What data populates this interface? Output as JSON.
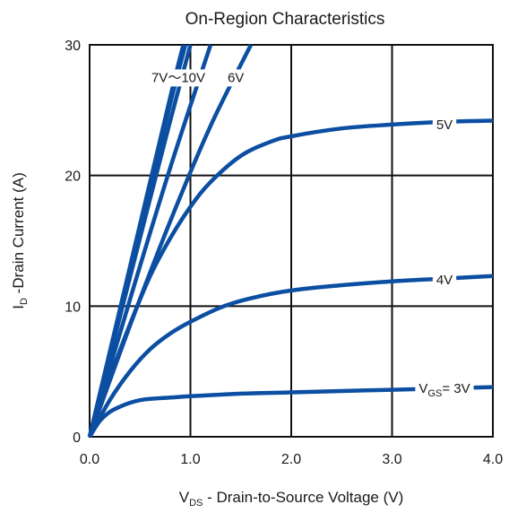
{
  "chart_data": {
    "type": "line",
    "title": "On-Region Characteristics",
    "xlabel": {
      "main": "V",
      "sub": "DS",
      "rest": " - Drain-to-Source Voltage (V)"
    },
    "ylabel": {
      "main": "I",
      "sub": "D",
      "rest": " -Drain Current (A)"
    },
    "xlim": [
      0,
      4
    ],
    "ylim": [
      0,
      30
    ],
    "x_ticks": [
      {
        "value": 0,
        "label": "0.0"
      },
      {
        "value": 1,
        "label": "1.0"
      },
      {
        "value": 2,
        "label": "2.0"
      },
      {
        "value": 3,
        "label": "3.0"
      },
      {
        "value": 4,
        "label": "4.0"
      }
    ],
    "y_ticks": [
      {
        "value": 0,
        "label": "0"
      },
      {
        "value": 10,
        "label": "10"
      },
      {
        "value": 20,
        "label": "20"
      },
      {
        "value": 30,
        "label": "30"
      }
    ],
    "grid": true,
    "line_color": "#0b4ea2",
    "series": [
      {
        "name": "VGS= 3V",
        "x": [
          0,
          0.1,
          0.2,
          0.3,
          0.4,
          0.5,
          0.6,
          0.8,
          1.0,
          1.5,
          2.0,
          2.5,
          3.0,
          3.5,
          4.0
        ],
        "y": [
          0,
          1.2,
          1.9,
          2.3,
          2.6,
          2.8,
          2.9,
          3.0,
          3.1,
          3.3,
          3.4,
          3.5,
          3.6,
          3.7,
          3.8
        ]
      },
      {
        "name": "4V",
        "x": [
          0,
          0.2,
          0.4,
          0.6,
          0.8,
          1.0,
          1.3,
          1.6,
          2.0,
          2.5,
          3.0,
          3.5,
          4.0
        ],
        "y": [
          0,
          2.8,
          5.0,
          6.7,
          7.9,
          8.8,
          9.9,
          10.6,
          11.2,
          11.6,
          11.9,
          12.1,
          12.3
        ]
      },
      {
        "name": "5V",
        "x": [
          0,
          0.2,
          0.4,
          0.6,
          0.8,
          1.0,
          1.2,
          1.5,
          1.8,
          2.0,
          2.5,
          3.0,
          3.5,
          4.0
        ],
        "y": [
          0,
          4.5,
          8.6,
          12.3,
          15.2,
          17.6,
          19.5,
          21.5,
          22.6,
          23.0,
          23.6,
          23.9,
          24.1,
          24.2
        ]
      },
      {
        "name": "6V",
        "x": [
          0,
          0.4,
          0.8,
          1.2,
          1.6
        ],
        "y": [
          0,
          8.5,
          16.5,
          23.8,
          30
        ]
      },
      {
        "name": "7V",
        "x": [
          0,
          0.4,
          0.8,
          1.2
        ],
        "y": [
          0,
          10.5,
          20.6,
          30
        ]
      },
      {
        "name": "8V",
        "x": [
          0,
          0.4,
          0.8,
          1.0
        ],
        "y": [
          0,
          12.2,
          24.2,
          30
        ]
      },
      {
        "name": "9V",
        "x": [
          0,
          0.4,
          0.8,
          0.95
        ],
        "y": [
          0,
          12.8,
          25.5,
          30
        ]
      },
      {
        "name": "10V",
        "x": [
          0,
          0.4,
          0.8,
          0.93
        ],
        "y": [
          0,
          13.0,
          26.0,
          30
        ]
      }
    ],
    "annotations": [
      {
        "text": "7V～10V",
        "x": 0.88,
        "y": 27.5
      },
      {
        "text": "6V",
        "x": 1.45,
        "y": 27.5
      },
      {
        "text": "5V",
        "x": 3.52,
        "y": 23.9
      },
      {
        "text": "4V",
        "x": 3.52,
        "y": 12.0
      },
      {
        "text": "3V",
        "x": 3.52,
        "y": 3.7,
        "prefix": "V",
        "prefix_sub": "GS",
        "prefix_rest": "= "
      }
    ]
  }
}
